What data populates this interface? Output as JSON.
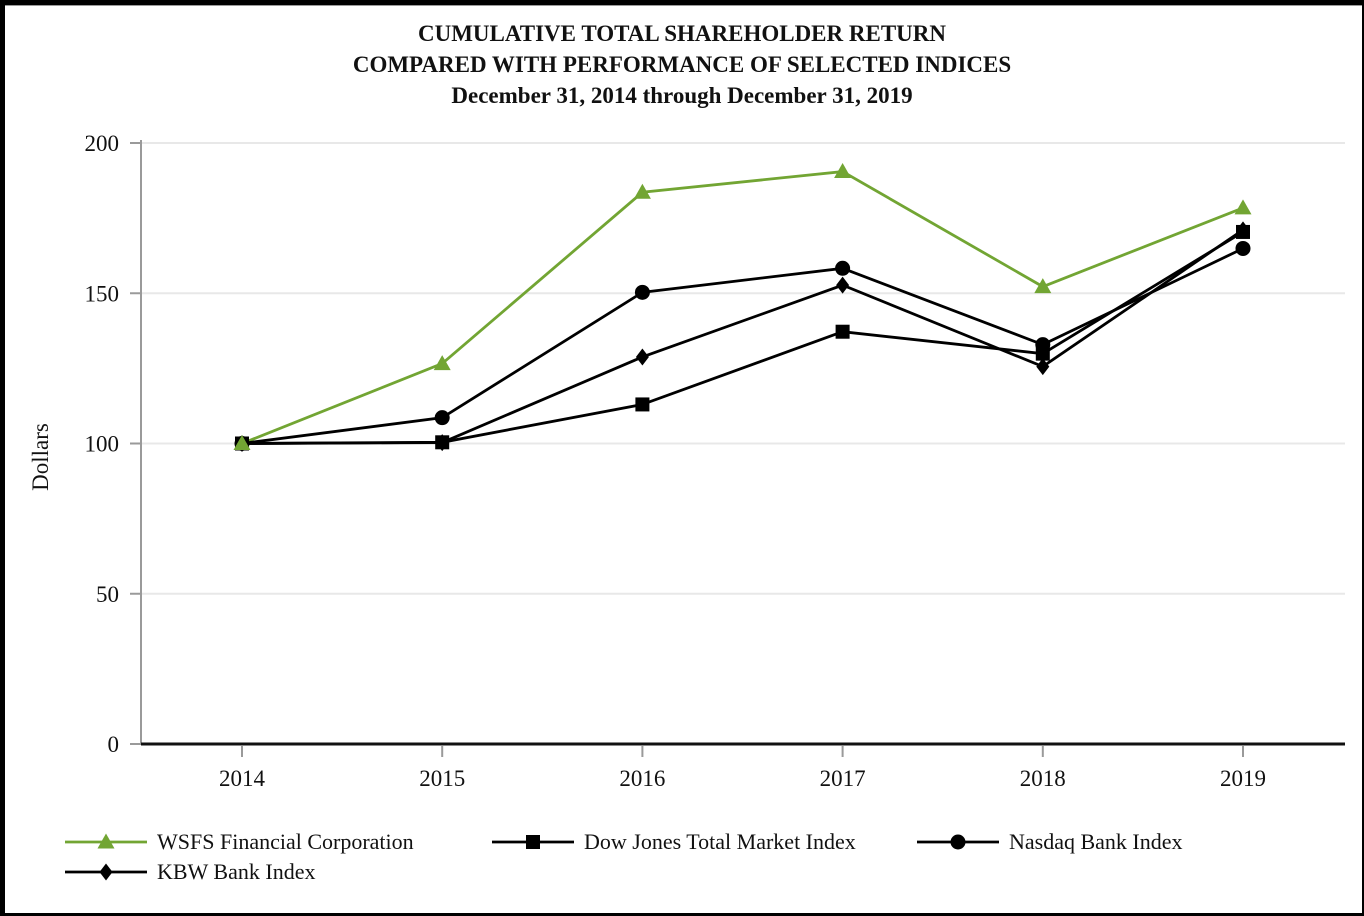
{
  "title": {
    "line1": "CUMULATIVE TOTAL SHAREHOLDER RETURN",
    "line2": "COMPARED WITH PERFORMANCE OF SELECTED INDICES",
    "line3": "December 31, 2014 through December 31, 2019"
  },
  "colors": {
    "wsfs_green": "#72a533",
    "series_black": "#000000",
    "grid": "#e8e8e8",
    "axis_gray": "#9a9a9a",
    "x_axis_black": "#111111",
    "frame_border": "#000000"
  },
  "chart_data": {
    "type": "line",
    "title": "CUMULATIVE TOTAL SHAREHOLDER RETURN COMPARED WITH PERFORMANCE OF SELECTED INDICES, December 31, 2014 through December 31, 2019",
    "xlabel": "",
    "ylabel": "Dollars",
    "x": [
      "2014",
      "2015",
      "2016",
      "2017",
      "2018",
      "2019"
    ],
    "ylim": [
      0,
      200
    ],
    "yticks": [
      0,
      50,
      100,
      150,
      200
    ],
    "grid": true,
    "legend_position": "bottom-left",
    "series": [
      {
        "name": "WSFS Financial Corporation",
        "marker": "triangle",
        "color": "#72a533",
        "values": [
          100.0,
          126.6,
          183.6,
          190.5,
          152.2,
          178.4
        ]
      },
      {
        "name": "Dow Jones Total Market Index",
        "marker": "square",
        "color": "#000000",
        "values": [
          100.0,
          100.4,
          113.0,
          137.2,
          129.9,
          170.4
        ]
      },
      {
        "name": "Nasdaq Bank Index",
        "marker": "circle",
        "color": "#000000",
        "values": [
          100.0,
          108.6,
          150.3,
          158.3,
          132.9,
          164.9
        ]
      },
      {
        "name": "KBW Bank Index",
        "marker": "diamond",
        "color": "#000000",
        "values": [
          100.0,
          100.3,
          128.8,
          152.7,
          125.6,
          171.1
        ]
      }
    ]
  }
}
